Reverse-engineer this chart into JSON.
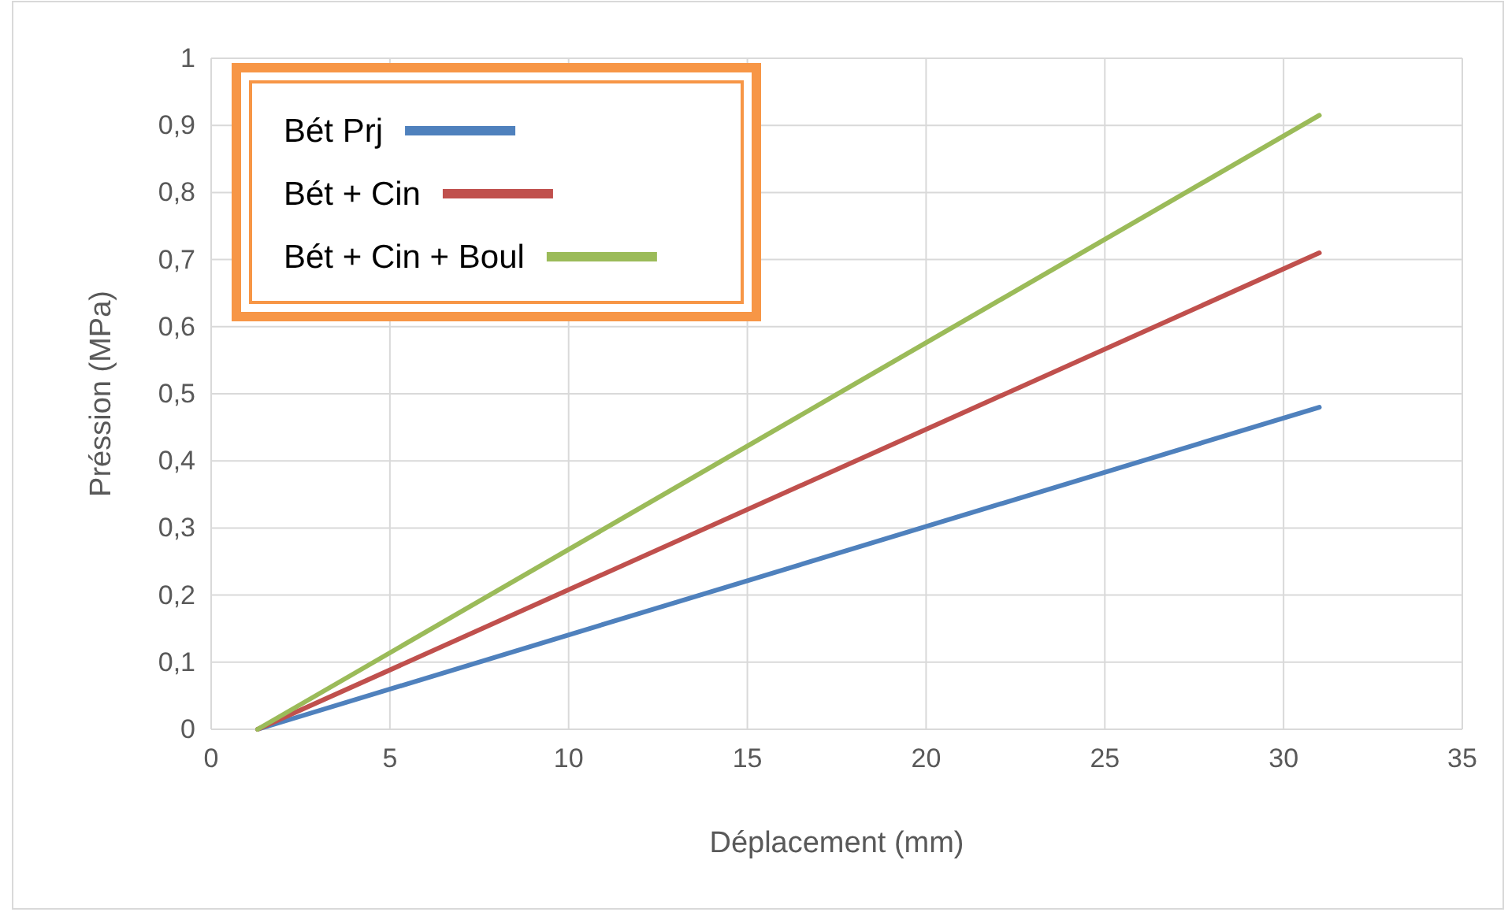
{
  "chart_data": {
    "type": "line",
    "xlabel": "Déplacement (mm)",
    "ylabel": "Préssion (MPa)",
    "xlim": [
      0,
      35
    ],
    "xticks": [
      0,
      5,
      10,
      15,
      20,
      25,
      30,
      35
    ],
    "ylim": [
      0,
      1
    ],
    "yticks": [
      0,
      {
        "value": 0.1,
        "label": "0,1"
      },
      {
        "value": 0.2,
        "label": "0,2"
      },
      {
        "value": 0.3,
        "label": "0,3"
      },
      {
        "value": 0.4,
        "label": "0,4"
      },
      {
        "value": 0.5,
        "label": "0,5"
      },
      {
        "value": 0.6,
        "label": "0,6"
      },
      {
        "value": 0.7,
        "label": "0,7"
      },
      {
        "value": 0.8,
        "label": "0,8"
      },
      {
        "value": 0.9,
        "label": "0,9"
      },
      1
    ],
    "x": [
      1.3,
      31
    ],
    "grid": true,
    "legend": "top left",
    "marker": "none",
    "line_style": "solid",
    "series": [
      {
        "name": "Bét Prj",
        "color": "#4f81bd",
        "values": [
          0,
          0.48
        ]
      },
      {
        "name": "Bét + Cin",
        "color": "#c0504d",
        "values": [
          0,
          0.71
        ]
      },
      {
        "name": "Bét + Cin + Boul",
        "color": "#9bbb59",
        "values": [
          0,
          0.915
        ]
      }
    ]
  }
}
